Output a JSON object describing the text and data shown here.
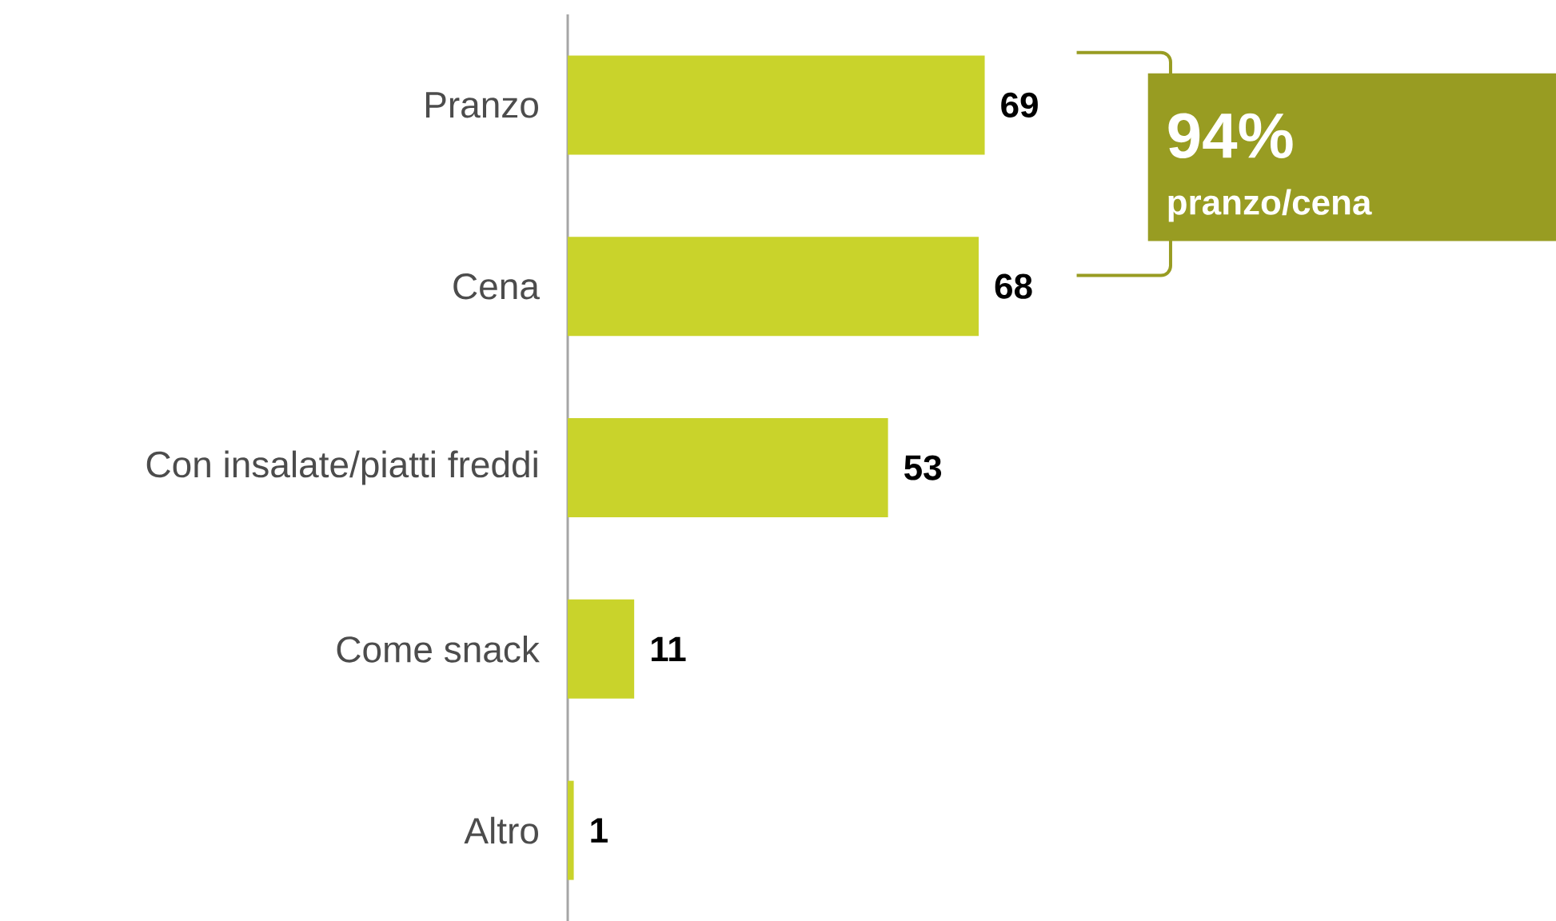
{
  "chart_data": {
    "type": "bar",
    "orientation": "horizontal",
    "categories": [
      "Pranzo",
      "Cena",
      "Con insalate/piatti freddi",
      "Come snack",
      "Altro"
    ],
    "values": [
      69,
      68,
      53,
      11,
      1
    ],
    "color": "#c9d32b",
    "data_labels": true,
    "annotations": [
      "94%",
      "pranzo/cena"
    ]
  }
}
